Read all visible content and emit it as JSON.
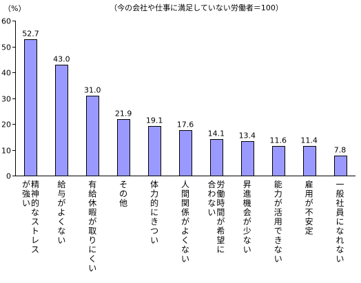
{
  "chart_data": {
    "type": "bar",
    "note": "（今の会社や仕事に満足していない労働者＝100）",
    "ylabel": "（%）",
    "ylim": [
      0,
      60
    ],
    "yticks": [
      0,
      10,
      20,
      30,
      40,
      50,
      60
    ],
    "grid": false,
    "bar_color": "#9999ff",
    "categories": [
      "精神的なストレスが強い",
      "給与がよくない",
      "有給休暇が取りにくい",
      "その他",
      "体力的にきつい",
      "人間関係がよくない",
      "労働時間が希望に合わない",
      "昇進機会が少ない",
      "能力が活用できない",
      "雇用が不安定",
      "一般社員になれない"
    ],
    "category_columns": [
      [
        "精神的なストレス",
        "が強い"
      ],
      [
        "給与がよくない"
      ],
      [
        "有給休暇が取りにくい"
      ],
      [
        "その他"
      ],
      [
        "体力的にきつい"
      ],
      [
        "人間関係がよくない"
      ],
      [
        "労働時間が希望に",
        "合わない"
      ],
      [
        "昇進機会が少ない"
      ],
      [
        "能力が活用できない"
      ],
      [
        "雇用が不安定"
      ],
      [
        "一般社員になれない"
      ]
    ],
    "values": [
      52.7,
      43.0,
      31.0,
      21.9,
      19.1,
      17.6,
      14.1,
      13.4,
      11.6,
      11.4,
      7.8
    ],
    "value_labels": [
      "52.7",
      "43.0",
      "31.0",
      "21.9",
      "19.1",
      "17.6",
      "14.1",
      "13.4",
      "11.6",
      "11.4",
      "7.8"
    ]
  }
}
